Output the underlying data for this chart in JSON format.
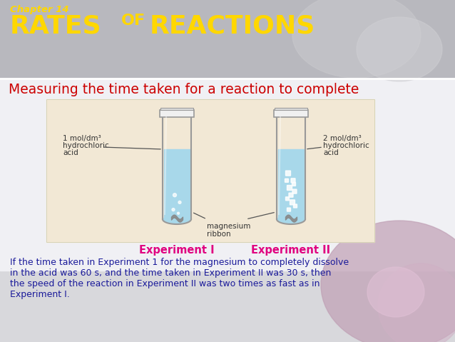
{
  "chapter_text": "Chapter 14",
  "chapter_color": "#FFD700",
  "title_rates": "RATES",
  "title_of": "OF",
  "title_reactions": "REACTIONS",
  "title_color": "#FFD700",
  "subtitle": "Measuring the time taken for a reaction to complete",
  "subtitle_color": "#cc0000",
  "diagram_bg": "#f2e8d5",
  "label1_line1": "1 mol/dm³",
  "label1_line2": "hydrochloric",
  "label1_line3": "acid",
  "label2_line1": "2 mol/dm³",
  "label2_line2": "hydrochloric",
  "label2_line3": "acid",
  "label3": "magnesium",
  "label3b": "ribbon",
  "exp1_label": "Experiment I",
  "exp2_label": "Experiment II",
  "exp_label_color": "#e0007f",
  "body_line1": "If the time taken in Experiment 1 for the magnesium to completely dissolve",
  "body_line2": "in the acid was 60 s, and the time taken in Experiment II was 30 s, then",
  "body_line3": "the speed of the reaction in Experiment II was two times as fast as in",
  "body_line4": "Experiment I.",
  "body_color": "#1a1a9a",
  "liquid_color": "#a8d8ea",
  "liquid_color2": "#a8d8ea",
  "tube_outline": "#999999",
  "header_bg": "#b8b8bc",
  "main_bg": "#e8e8ec",
  "white_area": "#ffffff",
  "pink_bg": "#c8a0b8"
}
